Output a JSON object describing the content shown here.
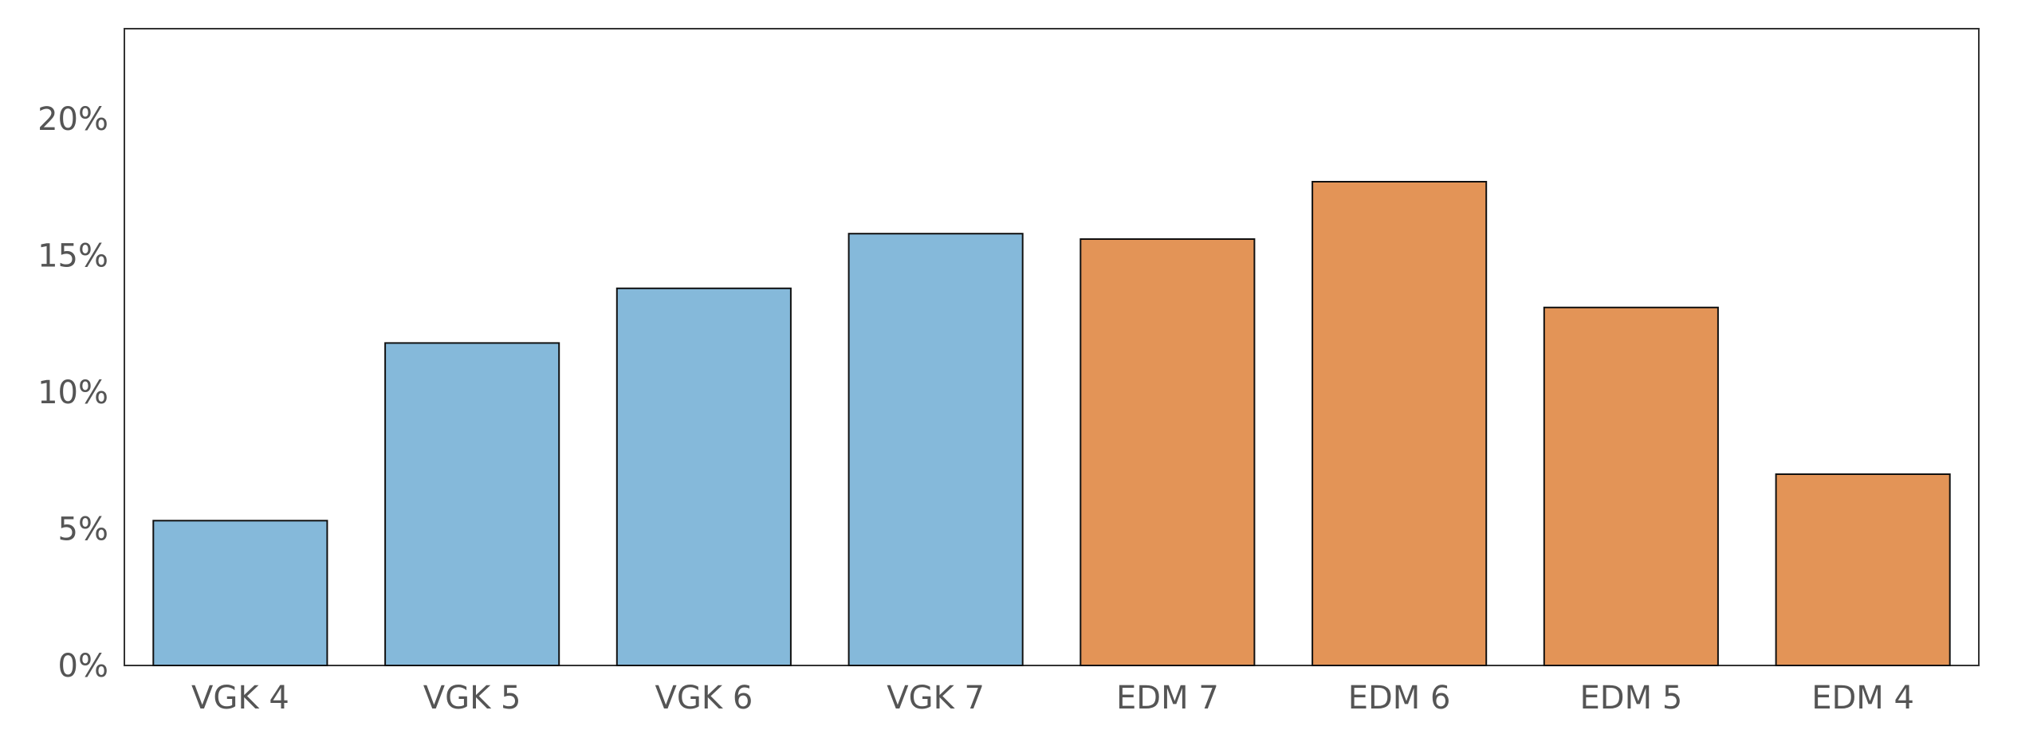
{
  "chart_data": {
    "type": "bar",
    "categories": [
      "VGK 4",
      "VGK 5",
      "VGK 6",
      "VGK 7",
      "EDM 7",
      "EDM 6",
      "EDM 5",
      "EDM 4"
    ],
    "values": [
      5.3,
      11.8,
      13.8,
      15.8,
      15.6,
      17.7,
      13.1,
      7.0
    ],
    "bar_colors": [
      "#85b9da",
      "#85b9da",
      "#85b9da",
      "#85b9da",
      "#e39457",
      "#e39457",
      "#e39457",
      "#e39457"
    ],
    "yticks": [
      0,
      5,
      10,
      15,
      20
    ],
    "ytick_labels": [
      "0%",
      "5%",
      "10%",
      "15%",
      "20%"
    ],
    "ylim": [
      0,
      23.3
    ],
    "grid": false,
    "legend": "none"
  }
}
